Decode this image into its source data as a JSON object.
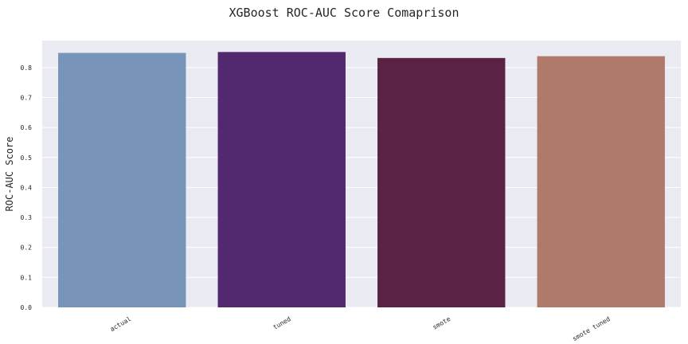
{
  "chart_data": {
    "type": "bar",
    "title": "XGBoost ROC-AUC Score Comaprison",
    "xlabel": "",
    "ylabel": "ROC-AUC Score",
    "categories": [
      "actual",
      "tuned",
      "smote",
      "smote tuned"
    ],
    "values": [
      0.849,
      0.852,
      0.832,
      0.838
    ],
    "colors": [
      "#7894b8",
      "#52286f",
      "#5a2244",
      "#b07a6a"
    ],
    "ylim": [
      0,
      0.89
    ],
    "yticks": [
      "0.0",
      "0.1",
      "0.2",
      "0.3",
      "0.4",
      "0.5",
      "0.6",
      "0.7",
      "0.8"
    ],
    "grid": true,
    "background": "#eaeaf2"
  }
}
